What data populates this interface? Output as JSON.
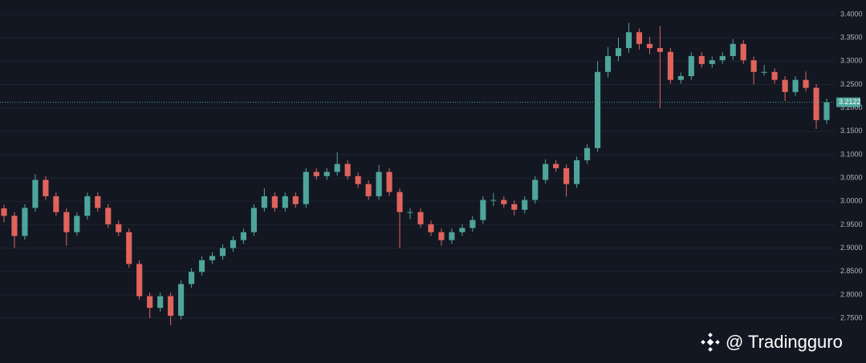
{
  "chart_data": {
    "type": "candlestick",
    "up_color": "#4ea59b",
    "down_color": "#e0645c",
    "open": [
      2.985,
      2.969,
      2.926,
      2.986,
      3.046,
      3.011,
      2.977,
      2.934,
      2.969,
      3.011,
      2.986,
      2.951,
      2.934,
      2.866,
      2.797,
      2.772,
      2.797,
      2.755,
      2.823,
      2.849,
      2.874,
      2.883,
      2.9,
      2.917,
      2.934,
      2.986,
      3.011,
      2.986,
      3.011,
      2.994,
      3.063,
      3.054,
      3.063,
      3.08,
      3.054,
      3.037,
      3.011,
      3.063,
      3.02,
      2.977,
      2.977,
      2.951,
      2.934,
      2.917,
      2.934,
      2.943,
      2.96,
      3.003,
      3.003,
      2.994,
      2.982,
      3.003,
      3.046,
      3.08,
      3.071,
      3.037,
      3.088,
      3.114,
      3.277,
      3.311,
      3.328,
      3.362,
      3.337,
      3.328,
      3.32,
      3.26,
      3.268,
      3.311,
      3.294,
      3.302,
      3.311,
      3.337,
      3.302,
      3.277,
      3.277,
      3.26,
      3.234,
      3.26,
      3.243,
      3.174
    ],
    "high": [
      2.993,
      2.977,
      2.994,
      3.058,
      3.054,
      3.019,
      2.985,
      2.977,
      3.019,
      3.019,
      2.994,
      2.959,
      2.942,
      2.874,
      2.805,
      2.805,
      2.805,
      2.831,
      2.857,
      2.882,
      2.891,
      2.908,
      2.925,
      2.942,
      2.994,
      3.028,
      3.019,
      3.019,
      3.019,
      3.071,
      3.071,
      3.071,
      3.105,
      3.088,
      3.062,
      3.045,
      3.078,
      3.071,
      3.028,
      2.985,
      2.985,
      2.959,
      2.942,
      2.942,
      2.951,
      2.968,
      3.011,
      3.018,
      3.011,
      3.002,
      3.011,
      3.054,
      3.09,
      3.088,
      3.079,
      3.096,
      3.122,
      3.3,
      3.33,
      3.35,
      3.382,
      3.37,
      3.352,
      3.375,
      3.328,
      3.276,
      3.319,
      3.319,
      3.31,
      3.319,
      3.347,
      3.345,
      3.31,
      3.292,
      3.285,
      3.268,
      3.268,
      3.278,
      3.251,
      3.22
    ],
    "low": [
      2.955,
      2.9,
      2.918,
      2.978,
      3.003,
      2.969,
      2.905,
      2.926,
      2.961,
      2.978,
      2.943,
      2.926,
      2.858,
      2.789,
      2.75,
      2.764,
      2.735,
      2.747,
      2.815,
      2.841,
      2.866,
      2.875,
      2.892,
      2.909,
      2.926,
      2.978,
      2.978,
      2.978,
      2.986,
      2.986,
      3.046,
      3.046,
      3.055,
      3.046,
      3.029,
      3.003,
      3.003,
      3.012,
      2.9,
      2.962,
      2.943,
      2.926,
      2.905,
      2.909,
      2.926,
      2.935,
      2.952,
      2.99,
      2.986,
      2.97,
      2.974,
      2.995,
      3.038,
      3.063,
      3.01,
      3.029,
      3.08,
      3.106,
      3.265,
      3.3,
      3.318,
      3.325,
      3.315,
      3.2,
      3.252,
      3.252,
      3.26,
      3.286,
      3.286,
      3.294,
      3.303,
      3.294,
      3.25,
      3.269,
      3.252,
      3.215,
      3.226,
      3.235,
      3.155,
      3.166
    ],
    "close": [
      2.969,
      2.926,
      2.986,
      3.046,
      3.011,
      2.977,
      2.934,
      2.969,
      3.011,
      2.986,
      2.951,
      2.934,
      2.866,
      2.797,
      2.772,
      2.797,
      2.755,
      2.823,
      2.849,
      2.874,
      2.883,
      2.9,
      2.917,
      2.934,
      2.986,
      3.011,
      2.986,
      3.011,
      2.994,
      3.063,
      3.054,
      3.063,
      3.08,
      3.054,
      3.037,
      3.011,
      3.063,
      3.02,
      2.977,
      2.977,
      2.951,
      2.934,
      2.917,
      2.934,
      2.943,
      2.96,
      3.003,
      3.003,
      2.994,
      2.982,
      3.003,
      3.046,
      3.08,
      3.071,
      3.037,
      3.088,
      3.114,
      3.277,
      3.311,
      3.328,
      3.362,
      3.337,
      3.328,
      3.32,
      3.26,
      3.268,
      3.311,
      3.294,
      3.302,
      3.311,
      3.337,
      3.302,
      3.277,
      3.277,
      3.26,
      3.234,
      3.26,
      3.243,
      3.174,
      3.212
    ],
    "ylim": [
      2.654,
      3.431
    ],
    "yticks": [
      {
        "value": 2.75,
        "label": "2.7500"
      },
      {
        "value": 2.8,
        "label": "2.8000"
      },
      {
        "value": 2.85,
        "label": "2.8500"
      },
      {
        "value": 2.9,
        "label": "2.9000"
      },
      {
        "value": 2.95,
        "label": "2.9500"
      },
      {
        "value": 3.0,
        "label": "3.0000"
      },
      {
        "value": 3.05,
        "label": "3.0500"
      },
      {
        "value": 3.1,
        "label": "3.1000"
      },
      {
        "value": 3.15,
        "label": "3.1500"
      },
      {
        "value": 3.2,
        "label": "3.2000"
      },
      {
        "value": 3.25,
        "label": "3.2500"
      },
      {
        "value": 3.3,
        "label": "3.3000"
      },
      {
        "value": 3.35,
        "label": "3.3500"
      },
      {
        "value": 3.4,
        "label": "3.4000"
      }
    ],
    "grid": true,
    "last_price": {
      "value": 3.2122,
      "label": "3.2122"
    },
    "watermark": "@ Tradingguro"
  }
}
